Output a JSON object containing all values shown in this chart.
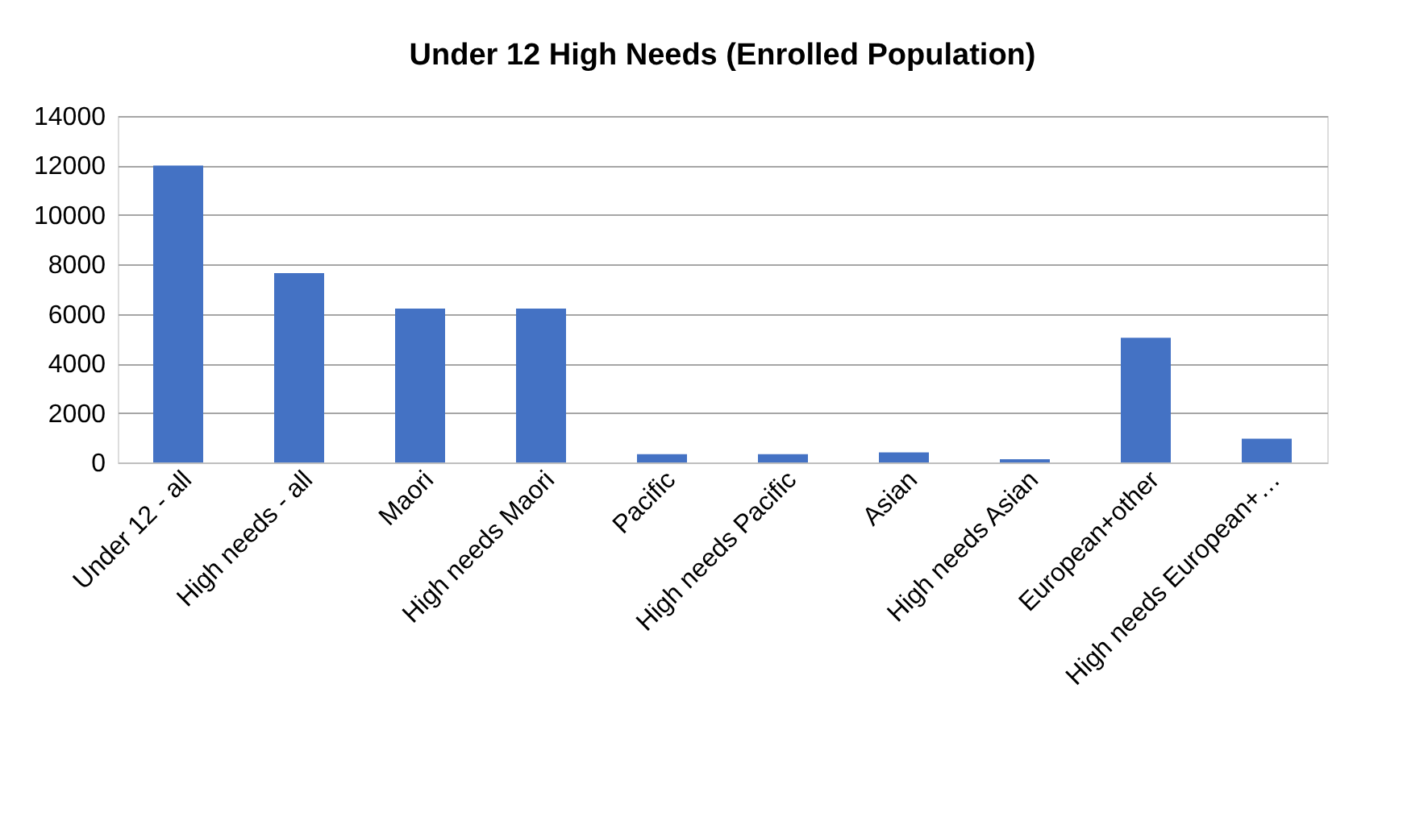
{
  "chart_data": {
    "type": "bar",
    "title": "Under 12 High Needs (Enrolled Population)",
    "categories": [
      "Under  12 - all",
      "High needs - all",
      "Maori",
      "High needs Maori",
      "Pacific",
      "High needs Pacific",
      "Asian",
      "High needs Asian",
      "European+other",
      "High needs European+…"
    ],
    "values": [
      12000,
      7650,
      6220,
      6220,
      330,
      330,
      410,
      130,
      5040,
      960
    ],
    "color": "#4472c4",
    "ylim": [
      0,
      14000
    ],
    "yticks": [
      0,
      2000,
      4000,
      6000,
      8000,
      10000,
      12000,
      14000
    ],
    "grid": "y"
  }
}
